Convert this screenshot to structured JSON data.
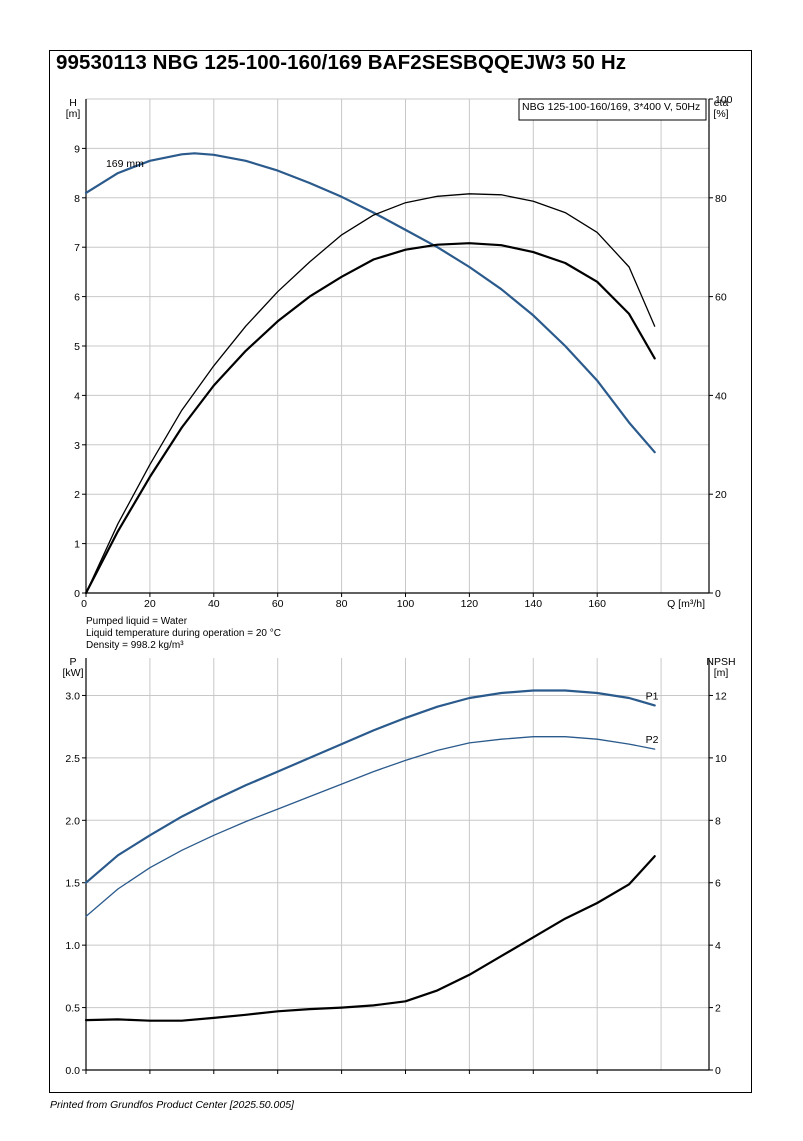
{
  "title": "99530113 NBG 125-100-160/169 BAF2SESBQQEJW3 50 Hz",
  "footer": "Printed from Grundfos Product Center [2025.50.005]",
  "colors": {
    "blue": "#2b5a8c",
    "black": "#000000",
    "grid": "#c8c8c8"
  },
  "info": {
    "liquid": "Pumped liquid = Water",
    "temperature": "Liquid temperature during operation = 20 °C",
    "density": "Density = 998.2 kg/m³"
  },
  "chart_data": [
    {
      "type": "line",
      "legend_box": "NBG 125-100-160/169, 3*400 V, 50Hz",
      "xlabel": "Q [m³/h]",
      "ylabel": [
        "H",
        "[m]"
      ],
      "y2label": [
        "eta",
        "[%]"
      ],
      "xlim": [
        0,
        195
      ],
      "ylim": [
        0,
        10
      ],
      "y2lim": [
        0,
        100
      ],
      "xticks": [
        "0",
        "20",
        "40",
        "60",
        "80",
        "100",
        "120",
        "140",
        "160"
      ],
      "yticks": [
        "0",
        "1",
        "2",
        "3",
        "4",
        "5",
        "6",
        "7",
        "8",
        "9"
      ],
      "y2ticks": [
        "0",
        "20",
        "40",
        "60",
        "80",
        "100"
      ],
      "grid": true,
      "series": [
        {
          "name": "169 mm",
          "axis": "left",
          "color": "blue",
          "width": 2.2,
          "x": [
            0,
            10,
            20,
            30,
            34,
            40,
            50,
            60,
            70,
            80,
            90,
            100,
            110,
            120,
            130,
            140,
            150,
            160,
            170,
            178
          ],
          "y": [
            8.1,
            8.5,
            8.75,
            8.88,
            8.9,
            8.87,
            8.75,
            8.55,
            8.3,
            8.02,
            7.7,
            7.35,
            7.0,
            6.6,
            6.15,
            5.62,
            5.0,
            4.3,
            3.45,
            2.85
          ]
        },
        {
          "axis": "right",
          "color": "black",
          "width": 1.3,
          "x": [
            0,
            10,
            20,
            30,
            40,
            50,
            60,
            70,
            80,
            90,
            100,
            110,
            120,
            130,
            140,
            150,
            160,
            170,
            178
          ],
          "y": [
            0,
            14,
            26,
            37,
            46,
            54,
            61,
            67,
            72.5,
            76.5,
            79,
            80.3,
            80.8,
            80.6,
            79.3,
            77,
            73,
            66,
            54
          ]
        },
        {
          "axis": "right",
          "color": "black",
          "width": 2.2,
          "x": [
            0,
            10,
            20,
            30,
            40,
            50,
            60,
            70,
            80,
            90,
            100,
            110,
            120,
            130,
            140,
            150,
            160,
            170,
            178
          ],
          "y": [
            0,
            12.5,
            23.5,
            33.5,
            42,
            49,
            55,
            60,
            64,
            67.5,
            69.5,
            70.5,
            70.8,
            70.4,
            69,
            66.8,
            63,
            56.5,
            47.5
          ]
        }
      ]
    },
    {
      "type": "line",
      "ylabel": [
        "P",
        "[kW]"
      ],
      "y2label": [
        "NPSH",
        "[m]"
      ],
      "xlim": [
        0,
        195
      ],
      "ylim": [
        0,
        3.3
      ],
      "y2lim": [
        0,
        13.2
      ],
      "yticks": [
        "0.0",
        "0.5",
        "1.0",
        "1.5",
        "2.0",
        "2.5",
        "3.0"
      ],
      "y2ticks": [
        "0",
        "2",
        "4",
        "6",
        "8",
        "10",
        "12"
      ],
      "grid": true,
      "series": [
        {
          "name": "P1",
          "axis": "left",
          "color": "blue",
          "width": 2.2,
          "x": [
            0,
            10,
            20,
            30,
            40,
            50,
            60,
            70,
            80,
            90,
            100,
            110,
            120,
            130,
            140,
            145,
            150,
            160,
            170,
            178
          ],
          "y": [
            1.5,
            1.72,
            1.88,
            2.03,
            2.16,
            2.28,
            2.39,
            2.5,
            2.61,
            2.72,
            2.82,
            2.91,
            2.98,
            3.02,
            3.04,
            3.04,
            3.04,
            3.02,
            2.98,
            2.92
          ]
        },
        {
          "name": "P2",
          "axis": "left",
          "color": "blue",
          "width": 1.3,
          "x": [
            0,
            10,
            20,
            30,
            40,
            50,
            60,
            70,
            80,
            90,
            100,
            110,
            120,
            130,
            140,
            145,
            150,
            160,
            170,
            178
          ],
          "y": [
            1.23,
            1.45,
            1.62,
            1.76,
            1.88,
            1.99,
            2.09,
            2.19,
            2.29,
            2.39,
            2.48,
            2.56,
            2.62,
            2.65,
            2.67,
            2.67,
            2.67,
            2.65,
            2.61,
            2.57
          ]
        },
        {
          "axis": "right",
          "color": "black",
          "width": 2.2,
          "x": [
            0,
            10,
            20,
            30,
            40,
            50,
            60,
            70,
            80,
            90,
            100,
            110,
            120,
            130,
            140,
            150,
            160,
            170,
            178
          ],
          "y": [
            1.6,
            1.62,
            1.58,
            1.58,
            1.67,
            1.77,
            1.88,
            1.95,
            2.0,
            2.07,
            2.2,
            2.55,
            3.05,
            3.65,
            4.25,
            4.85,
            5.35,
            5.95,
            6.85
          ]
        }
      ]
    }
  ]
}
